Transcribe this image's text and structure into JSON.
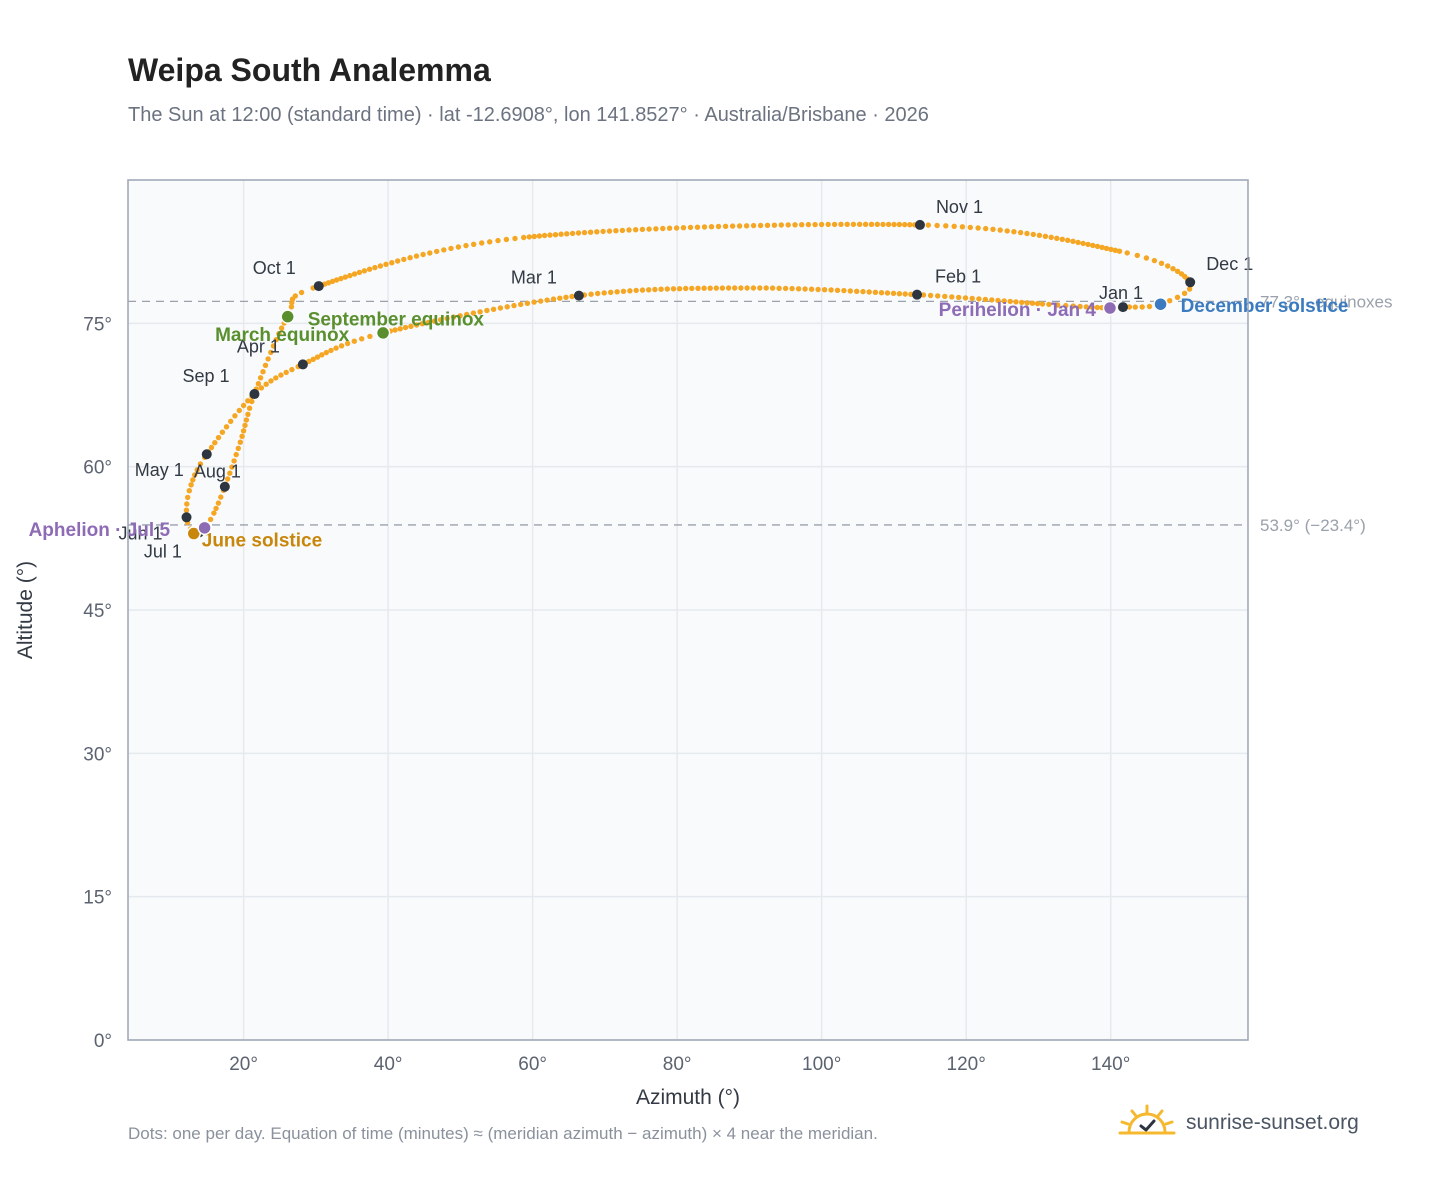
{
  "title": "Weipa South Analemma",
  "subtitle": "The Sun at 12:00 (standard time) · lat -12.6908°, lon 141.8527° · Australia/Brisbane · 2026",
  "footnote": "Dots: one per day. Equation of time (minutes) ≈ (meridian azimuth − azimuth) × 4 near the meridian.",
  "brand": {
    "name": "sunrise-sunset.org",
    "logo_icon": "sun-check-icon"
  },
  "colors": {
    "path": "#f5a623",
    "month_marker": "#2d3540",
    "equinox": "#5a8f2e",
    "june_solstice": "#c8860a",
    "december_solstice": "#3c7bbf",
    "apsis": "#8e6bb5",
    "reference_line": "#9aa1ab"
  },
  "chart_data": {
    "type": "scatter",
    "xlabel": "Azimuth (°)",
    "ylabel": "Altitude (°)",
    "xlim": [
      4,
      159
    ],
    "ylim": [
      0,
      90
    ],
    "x_ticks": [
      20,
      40,
      60,
      80,
      100,
      120,
      140
    ],
    "x_tick_labels": [
      "20°",
      "40°",
      "60°",
      "80°",
      "100°",
      "120°",
      "140°"
    ],
    "y_ticks": [
      0,
      15,
      30,
      45,
      60,
      75
    ],
    "y_tick_labels": [
      "0°",
      "15°",
      "30°",
      "45°",
      "60°",
      "75°"
    ],
    "grid": true,
    "points_per": "day",
    "reference_lines": [
      {
        "y": 77.3,
        "label": "77.3° · equinoxes"
      },
      {
        "y": 53.9,
        "label": "53.9° (−23.4°)"
      }
    ],
    "path_anchors": [
      {
        "date": "Jan 1",
        "az": 141.7,
        "alt": 76.7
      },
      {
        "date": "Jan 4",
        "az": 139.9,
        "alt": 76.6
      },
      {
        "date": "Jan 16",
        "az": 131.0,
        "alt": 77.0
      },
      {
        "date": "Feb 1",
        "az": 113.2,
        "alt": 78.0
      },
      {
        "date": "Feb 15",
        "az": 90.0,
        "alt": 78.7
      },
      {
        "date": "Mar 1",
        "az": 66.4,
        "alt": 77.9
      },
      {
        "date": "Mar 20",
        "az": 39.3,
        "alt": 74.0
      },
      {
        "date": "Apr 1",
        "az": 28.2,
        "alt": 70.7
      },
      {
        "date": "Apr 16",
        "az": 21.5,
        "alt": 67.6
      },
      {
        "date": "May 1",
        "az": 14.9,
        "alt": 61.3
      },
      {
        "date": "May 16",
        "az": 12.6,
        "alt": 57.8
      },
      {
        "date": "Jun 1",
        "az": 12.1,
        "alt": 54.7
      },
      {
        "date": "Jun 21",
        "az": 13.1,
        "alt": 53.0
      },
      {
        "date": "Jul 1",
        "az": 13.8,
        "alt": 53.1
      },
      {
        "date": "Jul 5",
        "az": 14.6,
        "alt": 53.6
      },
      {
        "date": "Jul 16",
        "az": 15.8,
        "alt": 55.0
      },
      {
        "date": "Aug 1",
        "az": 17.4,
        "alt": 57.9
      },
      {
        "date": "Aug 16",
        "az": 19.6,
        "alt": 62.7
      },
      {
        "date": "Sep 1",
        "az": 21.5,
        "alt": 67.6
      },
      {
        "date": "Sep 22",
        "az": 26.1,
        "alt": 75.7
      },
      {
        "date": "Oct 1",
        "az": 30.4,
        "alt": 78.9
      },
      {
        "date": "Oct 16",
        "az": 59.0,
        "alt": 84.0
      },
      {
        "date": "Nov 1",
        "az": 113.6,
        "alt": 85.3
      },
      {
        "date": "Nov 16",
        "az": 141.5,
        "alt": 82.5
      },
      {
        "date": "Dec 1",
        "az": 151.0,
        "alt": 79.3
      },
      {
        "date": "Dec 21",
        "az": 146.9,
        "alt": 77.0
      },
      {
        "date": "Dec 31",
        "az": 142.0,
        "alt": 76.7
      }
    ],
    "month_markers": [
      {
        "label": "Jan 1",
        "az": 141.7,
        "alt": 76.7
      },
      {
        "label": "Feb 1",
        "az": 113.2,
        "alt": 78.0
      },
      {
        "label": "Mar 1",
        "az": 66.4,
        "alt": 77.9
      },
      {
        "label": "Apr 1",
        "az": 28.2,
        "alt": 70.7
      },
      {
        "label": "May 1",
        "az": 14.9,
        "alt": 61.3
      },
      {
        "label": "Jun 1",
        "az": 12.1,
        "alt": 54.7
      },
      {
        "label": "Jul 1",
        "az": 13.8,
        "alt": 53.1
      },
      {
        "label": "Aug 1",
        "az": 17.4,
        "alt": 57.9
      },
      {
        "label": "Sep 1",
        "az": 21.5,
        "alt": 67.6
      },
      {
        "label": "Oct 1",
        "az": 30.4,
        "alt": 78.9
      },
      {
        "label": "Nov 1",
        "az": 113.6,
        "alt": 85.3
      },
      {
        "label": "Dec 1",
        "az": 151.0,
        "alt": 79.3
      }
    ],
    "events": [
      {
        "label": "March equinox",
        "az": 39.3,
        "alt": 74.0,
        "kind": "equinox"
      },
      {
        "label": "September equinox",
        "az": 26.1,
        "alt": 75.7,
        "kind": "equinox"
      },
      {
        "label": "June solstice",
        "az": 13.1,
        "alt": 53.0,
        "kind": "june_solstice"
      },
      {
        "label": "December solstice",
        "az": 146.9,
        "alt": 77.0,
        "kind": "december_solstice"
      },
      {
        "label": "Aphelion · Jul 5",
        "az": 14.6,
        "alt": 53.6,
        "kind": "apsis"
      },
      {
        "label": "Perihelion · Jan 4",
        "az": 139.9,
        "alt": 76.6,
        "kind": "apsis"
      }
    ]
  }
}
